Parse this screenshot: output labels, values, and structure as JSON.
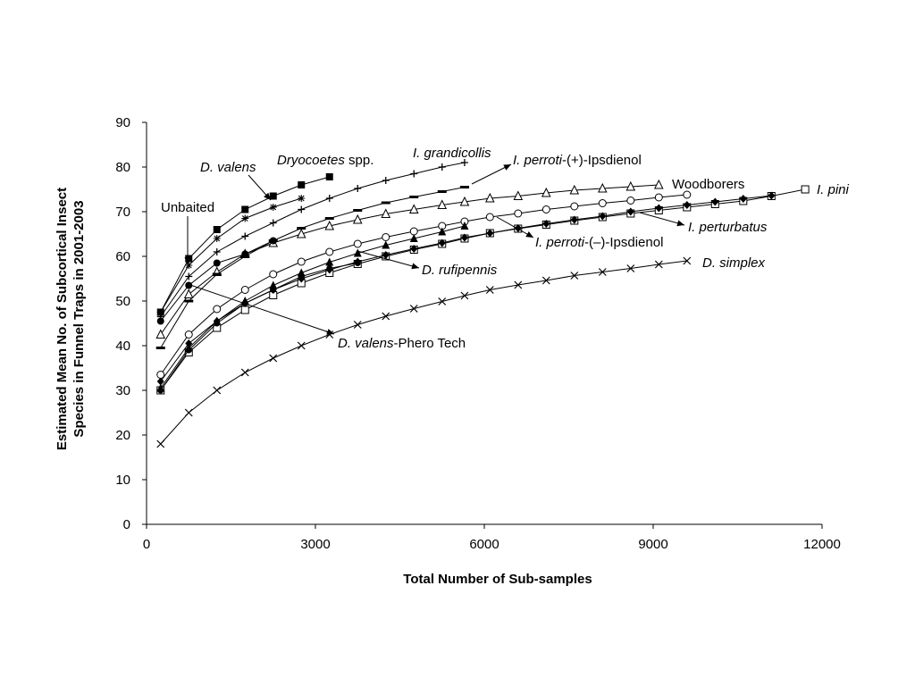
{
  "chart_data": {
    "type": "line",
    "xlabel": "Total Number of Sub-samples",
    "ylabel_lines": [
      "Estimated Mean No. of Subcortical Insect",
      "Species in Funnel Traps in 2001-2003"
    ],
    "xlim": [
      0,
      12000
    ],
    "ylim": [
      0,
      90
    ],
    "x_ticks": [
      0,
      3000,
      6000,
      9000,
      12000
    ],
    "y_ticks": [
      0,
      10,
      20,
      30,
      40,
      50,
      60,
      70,
      80,
      90
    ],
    "grid": false,
    "legend": "none (direct labels)",
    "series": [
      {
        "name_parts": [
          {
            "t": "Unbaited",
            "i": false
          }
        ],
        "marker": "filled-circle",
        "x": [
          250,
          750,
          1250,
          1750,
          2250
        ],
        "y": [
          45.5,
          53.5,
          58.5,
          60.5,
          63.5
        ]
      },
      {
        "name_parts": [
          {
            "t": "D. valens",
            "i": true
          }
        ],
        "marker": "star",
        "x": [
          250,
          750,
          1250,
          1750,
          2250,
          2750
        ],
        "y": [
          47.5,
          58.0,
          64.0,
          68.5,
          71.0,
          73.0
        ]
      },
      {
        "name_parts": [
          {
            "t": "Dryocoetes",
            "i": true
          },
          {
            "t": " spp.",
            "i": false
          }
        ],
        "marker": "filled-square",
        "x": [
          250,
          750,
          1250,
          1750,
          2250,
          2750,
          3250
        ],
        "y": [
          47.5,
          59.5,
          66.0,
          70.5,
          73.5,
          76.0,
          77.8
        ]
      },
      {
        "name_parts": [
          {
            "t": "I. grandicollis",
            "i": true
          }
        ],
        "marker": "plus",
        "x": [
          250,
          750,
          1250,
          1750,
          2250,
          2750,
          3250,
          3750,
          4250,
          4750,
          5250,
          5650
        ],
        "y": [
          46.5,
          55.5,
          61.0,
          64.5,
          67.5,
          70.5,
          73.0,
          75.2,
          77.0,
          78.5,
          80.0,
          81.0
        ]
      },
      {
        "name_parts": [
          {
            "t": "I. perroti",
            "i": true
          },
          {
            "t": "-(+)-Ipsdienol",
            "i": false
          }
        ],
        "marker": "dash",
        "x": [
          250,
          750,
          1250,
          1750,
          2250,
          2750,
          3250,
          3750,
          4250,
          4750,
          5250,
          5650
        ],
        "y": [
          39.5,
          50.0,
          56.0,
          60.0,
          63.5,
          66.3,
          68.5,
          70.3,
          72.0,
          73.3,
          74.5,
          75.5
        ]
      },
      {
        "name_parts": [
          {
            "t": "Woodborers",
            "i": false
          }
        ],
        "marker": "open-triangle",
        "x": [
          250,
          750,
          1250,
          1750,
          2250,
          2750,
          3250,
          3750,
          4250,
          4750,
          5250,
          5650,
          6100,
          6600,
          7100,
          7600,
          8100,
          8600,
          9100
        ],
        "y": [
          42.5,
          51.5,
          56.5,
          60.5,
          63.0,
          65.0,
          66.8,
          68.2,
          69.5,
          70.5,
          71.5,
          72.2,
          73.0,
          73.5,
          74.2,
          74.8,
          75.2,
          75.6,
          76.0
        ]
      },
      {
        "name_parts": [
          {
            "t": "I. perturbatus",
            "i": true
          }
        ],
        "marker": "open-circle",
        "x": [
          250,
          750,
          1250,
          1750,
          2250,
          2750,
          3250,
          3750,
          4250,
          4750,
          5250,
          5650,
          6100,
          6600,
          7100,
          7600,
          8100,
          8600,
          9100,
          9600
        ],
        "y": [
          33.5,
          42.5,
          48.2,
          52.5,
          56.0,
          58.8,
          61.0,
          62.8,
          64.3,
          65.6,
          66.8,
          67.8,
          68.8,
          69.6,
          70.5,
          71.2,
          71.9,
          72.5,
          73.2,
          73.8
        ]
      },
      {
        "name_parts": [
          {
            "t": "I. pini",
            "i": true
          }
        ],
        "marker": "open-square",
        "x": [
          250,
          750,
          1250,
          1750,
          2250,
          2750,
          3250,
          3750,
          4250,
          4750,
          5250,
          5650,
          6100,
          6600,
          7100,
          7600,
          8100,
          8600,
          9100,
          9600,
          10100,
          10600,
          11100,
          11700
        ],
        "y": [
          30.0,
          38.5,
          44.0,
          48.0,
          51.3,
          54.0,
          56.3,
          58.3,
          60.0,
          61.5,
          62.8,
          64.0,
          65.2,
          66.2,
          67.1,
          68.0,
          68.8,
          69.6,
          70.3,
          71.0,
          71.7,
          72.4,
          73.5,
          75.0
        ]
      },
      {
        "name_parts": [
          {
            "t": "I. perroti",
            "i": true
          },
          {
            "t": "-(–)-Ipsdienol",
            "i": false
          }
        ],
        "marker": "filled-diamond",
        "x": [
          250,
          750,
          1250,
          1750,
          2250,
          2750,
          3250,
          3750,
          4250,
          4750,
          5250,
          5650,
          6100,
          6600,
          7100,
          7600,
          8100,
          8600,
          9100,
          9600,
          10100,
          10600,
          11100
        ],
        "y": [
          32.0,
          40.5,
          45.5,
          49.5,
          52.5,
          55.0,
          57.0,
          58.8,
          60.3,
          61.7,
          63.0,
          64.2,
          65.2,
          66.3,
          67.3,
          68.2,
          69.0,
          70.0,
          70.8,
          71.5,
          72.2,
          72.9,
          73.6
        ]
      },
      {
        "name_parts": [
          {
            "t": "D. rufipennis",
            "i": true
          }
        ],
        "marker": "filled-triangle",
        "x": [
          250,
          750,
          1250,
          1750,
          2250,
          2750,
          3250,
          3750,
          4250,
          4750,
          5250,
          5650
        ],
        "y": [
          30.5,
          39.5,
          45.5,
          50.0,
          53.5,
          56.3,
          58.7,
          60.7,
          62.5,
          64.0,
          65.5,
          66.8
        ]
      },
      {
        "name_parts": [
          {
            "t": "D. valens",
            "i": true
          },
          {
            "t": "-Phero Tech",
            "i": false
          }
        ],
        "marker": "filled-circle-small",
        "x": [
          250,
          750,
          1250,
          1750,
          2250,
          2750,
          3250,
          3750
        ],
        "y": [
          30.0,
          39.0,
          45.0,
          49.5,
          52.5,
          55.5,
          57.3,
          58.5
        ]
      },
      {
        "name_parts": [
          {
            "t": "D. simplex",
            "i": true
          }
        ],
        "marker": "cross",
        "x": [
          250,
          750,
          1250,
          1750,
          2250,
          2750,
          3250,
          3750,
          4250,
          4750,
          5250,
          5650,
          6100,
          6600,
          7100,
          7600,
          8100,
          8600,
          9100,
          9600
        ],
        "y": [
          18.0,
          25.0,
          30.0,
          34.0,
          37.2,
          40.0,
          42.5,
          44.7,
          46.6,
          48.3,
          49.9,
          51.2,
          52.5,
          53.6,
          54.6,
          55.7,
          56.5,
          57.3,
          58.2,
          59.0
        ]
      }
    ]
  }
}
